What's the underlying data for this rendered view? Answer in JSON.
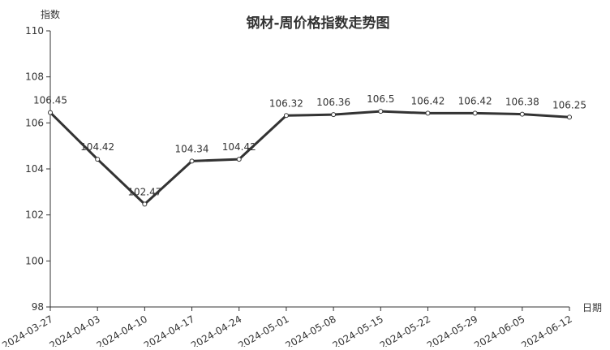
{
  "chart_data": {
    "type": "line",
    "title": "钢材-周价格指数走势图",
    "ylabel": "指数",
    "xlabel": "日期",
    "ylim": [
      98,
      110
    ],
    "yticks": [
      98,
      100,
      102,
      104,
      106,
      108,
      110
    ],
    "categories": [
      "2024-03-27",
      "2024-04-03",
      "2024-04-10",
      "2024-04-17",
      "2024-04-24",
      "2024-05-01",
      "2024-05-08",
      "2024-05-15",
      "2024-05-22",
      "2024-05-29",
      "2024-06-05",
      "2024-06-12"
    ],
    "values": [
      106.45,
      104.42,
      102.47,
      104.34,
      104.42,
      106.32,
      106.36,
      106.5,
      106.42,
      106.42,
      106.38,
      106.25
    ],
    "grid": false,
    "line_color": "#333333"
  }
}
